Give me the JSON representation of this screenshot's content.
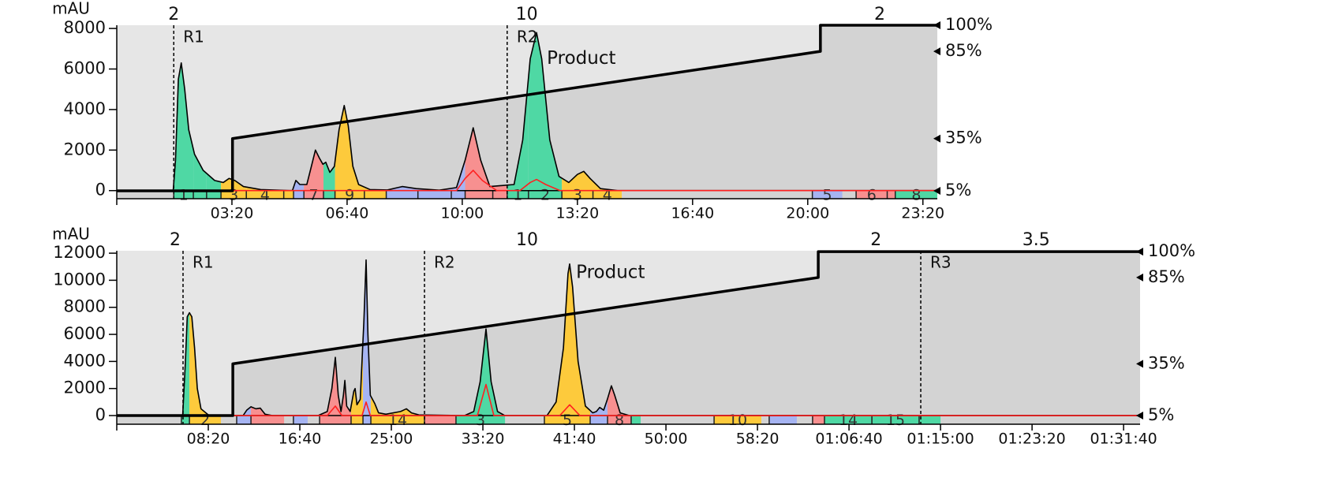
{
  "chart_data": [
    {
      "type": "line",
      "y_label": "mAU",
      "xlim": [
        0,
        1425
      ],
      "ylim": [
        -400,
        8160
      ],
      "y2lim": [
        0.5,
        100
      ],
      "xticks": [
        {
          "value": 200,
          "label": "03:20"
        },
        {
          "value": 400,
          "label": "06:40"
        },
        {
          "value": 600,
          "label": "10:00"
        },
        {
          "value": 800,
          "label": "13:20"
        },
        {
          "value": 1000,
          "label": "16:40"
        },
        {
          "value": 1200,
          "label": "20:00"
        },
        {
          "value": 1400,
          "label": "23:20"
        }
      ],
      "yticks": [
        0,
        2000,
        4000,
        6000,
        8000
      ],
      "y2ticks": [
        {
          "value": 5,
          "label": "5%"
        },
        {
          "value": 35,
          "label": "35%"
        },
        {
          "value": 85,
          "label": "85%"
        },
        {
          "value": 100,
          "label": "100%"
        }
      ],
      "series": [
        {
          "color": "#000000",
          "x": [
            0,
            98,
            102,
            107,
            112,
            118,
            125,
            135,
            150,
            170,
            185,
            195,
            205,
            220,
            250,
            300,
            305,
            311,
            318,
            330,
            338,
            345,
            352,
            358,
            363,
            370,
            378,
            386,
            395,
            402,
            410,
            420,
            440,
            470,
            488,
            496,
            520,
            560,
            590,
            605,
            619,
            632,
            648,
            690,
            705,
            718,
            729,
            738,
            752,
            768,
            785,
            800,
            811,
            822,
            840,
            870,
            1425
          ],
          "values": [
            0,
            0,
            1500,
            5500,
            6300,
            5000,
            3000,
            1800,
            1000,
            500,
            400,
            600,
            500,
            200,
            50,
            0,
            0,
            500,
            300,
            300,
            1200,
            2000,
            1600,
            1300,
            1400,
            900,
            1200,
            3000,
            4200,
            3200,
            1200,
            300,
            50,
            30,
            150,
            200,
            100,
            20,
            150,
            1500,
            3100,
            1500,
            200,
            300,
            2500,
            6500,
            7800,
            6500,
            2500,
            700,
            400,
            800,
            950,
            600,
            100,
            0,
            0
          ]
        },
        {
          "color": "#ff2020",
          "x": [
            0,
            590,
            605,
            619,
            635,
            660,
            700,
            718,
            729,
            745,
            770,
            1425
          ],
          "values": [
            0,
            0,
            600,
            1000,
            500,
            0,
            0,
            400,
            550,
            300,
            0,
            0
          ]
        },
        {
          "color": "#000000",
          "axis": "y2",
          "x": [
            0,
            201,
            201,
            1222,
            1222,
            1425
          ],
          "values": [
            5,
            5,
            35,
            85,
            100,
            100
          ]
        }
      ],
      "fractions": [
        {
          "start": 99,
          "end": 133,
          "color": "#4fd8a4",
          "label": 1
        },
        {
          "start": 133,
          "end": 156,
          "color": "#4fd8a4",
          "label": null
        },
        {
          "start": 156,
          "end": 181,
          "color": "#4fd8a4",
          "label": null
        },
        {
          "start": 181,
          "end": 225,
          "color": "#fdca3c",
          "label": 3
        },
        {
          "start": 225,
          "end": 290,
          "color": "#fdca3c",
          "label": 4
        },
        {
          "start": 290,
          "end": 307,
          "color": "#fdca3c",
          "label": null
        },
        {
          "start": 307,
          "end": 325,
          "color": "#a6b4f2",
          "label": null
        },
        {
          "start": 325,
          "end": 359,
          "color": "#f79090",
          "label": 7
        },
        {
          "start": 359,
          "end": 379,
          "color": "#4fd8a4",
          "label": null
        },
        {
          "start": 379,
          "end": 430,
          "color": "#fdca3c",
          "label": 9
        },
        {
          "start": 430,
          "end": 468,
          "color": "#fdca3c",
          "label": null
        },
        {
          "start": 468,
          "end": 523,
          "color": "#a6b4f2",
          "label": null
        },
        {
          "start": 523,
          "end": 581,
          "color": "#a6b4f2",
          "label": null
        },
        {
          "start": 581,
          "end": 605,
          "color": "#a6b4f2",
          "label": null
        },
        {
          "start": 605,
          "end": 653,
          "color": "#f79090",
          "label": null
        },
        {
          "start": 653,
          "end": 678,
          "color": "#f79090",
          "label": null
        },
        {
          "start": 678,
          "end": 715,
          "color": "#4fd8a4",
          "label": 1
        },
        {
          "start": 715,
          "end": 773,
          "color": "#4fd8a4",
          "label": 2
        },
        {
          "start": 773,
          "end": 827,
          "color": "#fdca3c",
          "label": 3
        },
        {
          "start": 827,
          "end": 877,
          "color": "#fdca3c",
          "label": 4
        },
        {
          "start": 1208,
          "end": 1260,
          "color": "#a6b4f2",
          "label": 5
        },
        {
          "start": 1284,
          "end": 1338,
          "color": "#f79090",
          "label": 6
        },
        {
          "start": 1338,
          "end": 1352,
          "color": "#f79090",
          "label": null
        },
        {
          "start": 1352,
          "end": 1425,
          "color": "#4fd8a4",
          "label": 8
        }
      ],
      "markers": [
        {
          "x": 99,
          "label": "R1"
        },
        {
          "x": 678,
          "label": "R2"
        }
      ],
      "flow_rates": [
        {
          "x": 99,
          "value": 2
        },
        {
          "x": 712,
          "value": 10
        },
        {
          "x": 1325,
          "value": 2
        }
      ],
      "annotations": [
        {
          "text": "Product",
          "x": 747,
          "y": 6500
        }
      ]
    },
    {
      "type": "line",
      "y_label": "mAU",
      "xlim": [
        0,
        5590
      ],
      "ylim": [
        -640,
        12180
      ],
      "y2lim": [
        0,
        100.5
      ],
      "xticks": [
        {
          "value": 500,
          "label": "08:20"
        },
        {
          "value": 1000,
          "label": "16:40"
        },
        {
          "value": 1500,
          "label": "25:00"
        },
        {
          "value": 2000,
          "label": "33:20"
        },
        {
          "value": 2500,
          "label": "41:40"
        },
        {
          "value": 3000,
          "label": "50:00"
        },
        {
          "value": 3500,
          "label": "58:20"
        },
        {
          "value": 4000,
          "label": "01:06:40"
        },
        {
          "value": 4500,
          "label": "01:15:00"
        },
        {
          "value": 5000,
          "label": "01:23:20"
        },
        {
          "value": 5500,
          "label": "01:31:40"
        }
      ],
      "yticks": [
        0,
        2000,
        4000,
        6000,
        8000,
        10000,
        12000
      ],
      "y2ticks": [
        {
          "value": 5,
          "label": "5%"
        },
        {
          "value": 35,
          "label": "35%"
        },
        {
          "value": 85,
          "label": "85%"
        },
        {
          "value": 100,
          "label": "100%"
        }
      ],
      "series": [
        {
          "color": "#000000",
          "x": [
            0,
            360,
            375,
            385,
            397,
            410,
            425,
            440,
            460,
            500,
            547,
            690,
            710,
            733,
            760,
            784,
            810,
            850,
            1100,
            1150,
            1175,
            1194,
            1210,
            1225,
            1238,
            1246,
            1256,
            1275,
            1295,
            1302,
            1312,
            1330,
            1350,
            1362,
            1372,
            1385,
            1409,
            1430,
            1470,
            1550,
            1582,
            1610,
            1650,
            1900,
            1950,
            1985,
            2017,
            2045,
            2080,
            2120,
            2350,
            2400,
            2440,
            2465,
            2474,
            2490,
            2520,
            2560,
            2600,
            2620,
            2638,
            2660,
            2680,
            2702,
            2720,
            2750,
            2800,
            5590
          ],
          "values": [
            0,
            0,
            4000,
            7300,
            7600,
            7300,
            5000,
            2000,
            500,
            50,
            0,
            0,
            400,
            650,
            500,
            550,
            100,
            0,
            0,
            300,
            2000,
            4300,
            1500,
            300,
            1500,
            2600,
            700,
            300,
            1800,
            2000,
            800,
            1200,
            7000,
            11500,
            6000,
            1500,
            900,
            200,
            100,
            300,
            500,
            200,
            50,
            0,
            300,
            2500,
            6400,
            2500,
            300,
            0,
            0,
            1000,
            5000,
            10500,
            11200,
            9500,
            4000,
            700,
            200,
            300,
            600,
            400,
            1200,
            2200,
            1500,
            200,
            0,
            0
          ]
        },
        {
          "color": "#ff2020",
          "x": [
            0,
            1150,
            1194,
            1230,
            1340,
            1362,
            1385,
            1970,
            2017,
            2060,
            2420,
            2474,
            2530,
            5590
          ],
          "values": [
            0,
            0,
            700,
            0,
            0,
            1000,
            0,
            0,
            2300,
            0,
            0,
            800,
            0,
            0
          ]
        },
        {
          "color": "#000000",
          "axis": "y2",
          "x": [
            0,
            634,
            634,
            3832,
            3832,
            5590
          ],
          "values": [
            5,
            5,
            35,
            85,
            100,
            100
          ]
        }
      ],
      "fractions": [
        {
          "start": 353,
          "end": 397,
          "color": "#4fd8a4",
          "label": null
        },
        {
          "start": 397,
          "end": 569,
          "color": "#fdca3c",
          "label": 2
        },
        {
          "start": 655,
          "end": 733,
          "color": "#a6b4f2",
          "label": null
        },
        {
          "start": 733,
          "end": 914,
          "color": "#f79090",
          "label": null
        },
        {
          "start": 965,
          "end": 1043,
          "color": "#a6b4f2",
          "label": null
        },
        {
          "start": 1108,
          "end": 1280,
          "color": "#f79090",
          "label": null
        },
        {
          "start": 1280,
          "end": 1345,
          "color": "#fdca3c",
          "label": null
        },
        {
          "start": 1345,
          "end": 1388,
          "color": "#a6b4f2",
          "label": null
        },
        {
          "start": 1388,
          "end": 1681,
          "color": "#fdca3c",
          "label": 14
        },
        {
          "start": 1681,
          "end": 1853,
          "color": "#f79090",
          "label": null
        },
        {
          "start": 1853,
          "end": 2121,
          "color": "#4fd8a4",
          "label": 3
        },
        {
          "start": 2336,
          "end": 2586,
          "color": "#fdca3c",
          "label": 5
        },
        {
          "start": 2586,
          "end": 2681,
          "color": "#a6b4f2",
          "label": null
        },
        {
          "start": 2681,
          "end": 2810,
          "color": "#f79090",
          "label": 8
        },
        {
          "start": 2810,
          "end": 2862,
          "color": "#4fd8a4",
          "label": null
        },
        {
          "start": 3263,
          "end": 3521,
          "color": "#fdca3c",
          "label": 10
        },
        {
          "start": 3564,
          "end": 3715,
          "color": "#a6b4f2",
          "label": null
        },
        {
          "start": 3801,
          "end": 3866,
          "color": "#f79090",
          "label": null
        },
        {
          "start": 3866,
          "end": 4125,
          "color": "#4fd8a4",
          "label": 14
        },
        {
          "start": 4125,
          "end": 4383,
          "color": "#4fd8a4",
          "label": 15
        },
        {
          "start": 4383,
          "end": 4500,
          "color": "#4fd8a4",
          "label": null
        }
      ],
      "markers": [
        {
          "x": 362,
          "label": "R1"
        },
        {
          "x": 1681,
          "label": "R2"
        },
        {
          "x": 4392,
          "label": "R3"
        }
      ],
      "flow_rates": [
        {
          "x": 319,
          "value": 2
        },
        {
          "x": 2241,
          "value": 10
        },
        {
          "x": 4147,
          "value": 2
        },
        {
          "x": 5022,
          "value": 3.5
        }
      ],
      "annotations": [
        {
          "text": "Product",
          "x": 2509,
          "y": 10550
        }
      ]
    }
  ]
}
